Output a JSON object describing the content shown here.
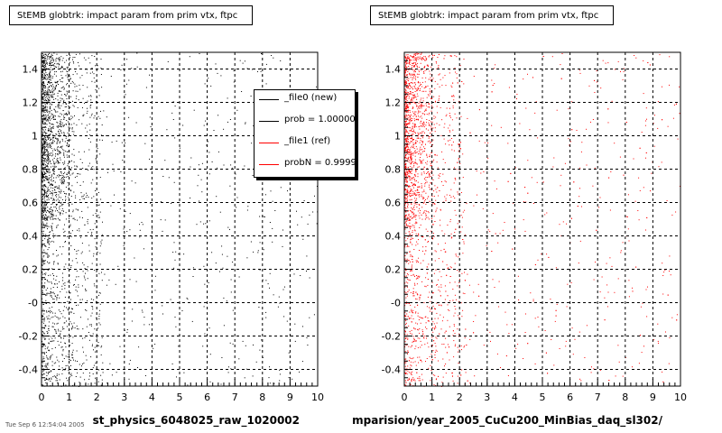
{
  "chart_data": [
    {
      "type": "scatter",
      "title": "StEMB globtrk: impact param from prim vtx, ftpc",
      "xlabel": "st_physics_6048025_raw_1020002",
      "ylabel": "",
      "xlim": [
        0,
        10
      ],
      "ylim": [
        -0.5,
        1.5
      ],
      "xticks": [
        "0",
        "1",
        "2",
        "3",
        "4",
        "5",
        "6",
        "7",
        "8",
        "9",
        "10"
      ],
      "yticks": [
        "-0.4",
        "-0.2",
        "-0",
        "0.2",
        "0.4",
        "0.6",
        "0.8",
        "1",
        "1.2",
        "1.4"
      ],
      "grid": true,
      "marker_color": "#000000",
      "legend": {
        "placement": "top-right",
        "entries": [
          {
            "label": "_file0 (new)",
            "color": "#000000"
          },
          {
            "label": "prob = 1.000000",
            "color": "#000000"
          },
          {
            "label": "_file1 (ref)",
            "color": "#ff0000"
          },
          {
            "label": "probN = 0.999910",
            "color": "#ff0000"
          }
        ]
      }
    },
    {
      "type": "scatter",
      "title": "StEMB globtrk: impact param from prim vtx, ftpc",
      "xlabel": "mparision/year_2005_CuCu200_MinBias_daq_sl302/",
      "ylabel": "",
      "xlim": [
        0,
        10
      ],
      "ylim": [
        -0.5,
        1.5
      ],
      "xticks": [
        "0",
        "1",
        "2",
        "3",
        "4",
        "5",
        "6",
        "7",
        "8",
        "9",
        "10"
      ],
      "yticks": [
        "-0.4",
        "-0.2",
        "-0",
        "0.2",
        "0.4",
        "0.6",
        "0.8",
        "1",
        "1.2",
        "1.4"
      ],
      "grid": true,
      "marker_color": "#ff0000"
    }
  ],
  "footer_text": "Tue Sep 6 12:54:04 2005"
}
